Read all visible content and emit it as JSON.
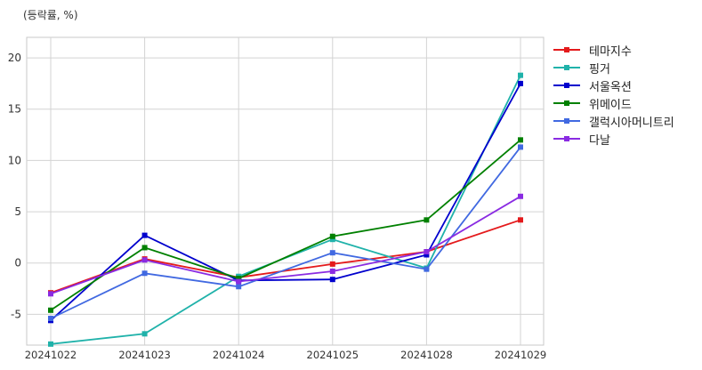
{
  "chart_data": {
    "type": "line",
    "ylabel": "(등락률, %)",
    "categories": [
      "20241022",
      "20241023",
      "20241024",
      "20241025",
      "20241028",
      "20241029"
    ],
    "ylim": [
      -8,
      22
    ],
    "yticks": [
      -5,
      0,
      5,
      10,
      15,
      20
    ],
    "grid": true,
    "legend_position": "right",
    "series": [
      {
        "name": "테마지수",
        "color": "#e41a1c",
        "values": [
          -2.9,
          0.4,
          -1.4,
          -0.1,
          1.1,
          4.2
        ]
      },
      {
        "name": "핑거",
        "color": "#20b2aa",
        "values": [
          -7.9,
          -6.9,
          -1.3,
          2.3,
          -0.5,
          18.3
        ]
      },
      {
        "name": "서울옥션",
        "color": "#0000cd",
        "values": [
          -5.6,
          2.7,
          -1.7,
          -1.6,
          0.8,
          17.5
        ]
      },
      {
        "name": "위메이드",
        "color": "#008000",
        "values": [
          -4.6,
          1.5,
          -1.5,
          2.6,
          4.2,
          12.0
        ]
      },
      {
        "name": "갤럭시아머니트리",
        "color": "#4169e1",
        "values": [
          -5.4,
          -1.0,
          -2.3,
          1.0,
          -0.6,
          11.3
        ]
      },
      {
        "name": "다날",
        "color": "#8a2be2",
        "values": [
          -3.0,
          0.3,
          -1.8,
          -0.8,
          1.1,
          6.5
        ]
      }
    ]
  }
}
